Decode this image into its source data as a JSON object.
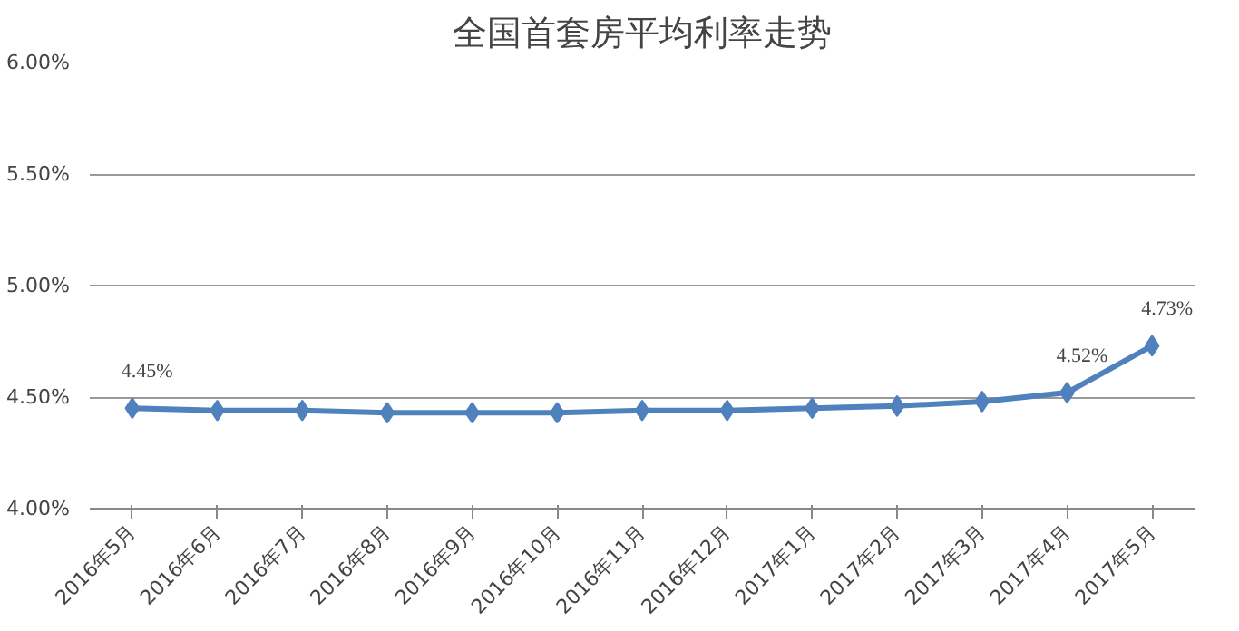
{
  "chart_data": {
    "type": "line",
    "title": "全国首套房平均利率走势",
    "categories": [
      "2016年5月",
      "2016年6月",
      "2016年7月",
      "2016年8月",
      "2016年9月",
      "2016年10月",
      "2016年11月",
      "2016年12月",
      "2017年1月",
      "2017年2月",
      "2017年3月",
      "2017年4月",
      "2017年5月"
    ],
    "series": [
      {
        "color": "#4f81bd",
        "values": [
          4.45,
          4.44,
          4.44,
          4.43,
          4.43,
          4.43,
          4.44,
          4.44,
          4.45,
          4.46,
          4.48,
          4.52,
          4.73
        ],
        "value_labels": [
          "4.45%",
          null,
          null,
          null,
          null,
          null,
          null,
          null,
          null,
          null,
          null,
          "4.52%",
          "4.73%"
        ]
      }
    ],
    "ylim": [
      4.0,
      6.0
    ],
    "yticks": [
      {
        "value": 4.0,
        "label": "4.00%"
      },
      {
        "value": 4.5,
        "label": "4.50%"
      },
      {
        "value": 5.0,
        "label": "5.00%"
      },
      {
        "value": 5.5,
        "label": "5.50%"
      },
      {
        "value": 6.0,
        "label": "6.00%"
      }
    ],
    "grid": "y",
    "marker": "diamond",
    "line_style": "solid"
  }
}
